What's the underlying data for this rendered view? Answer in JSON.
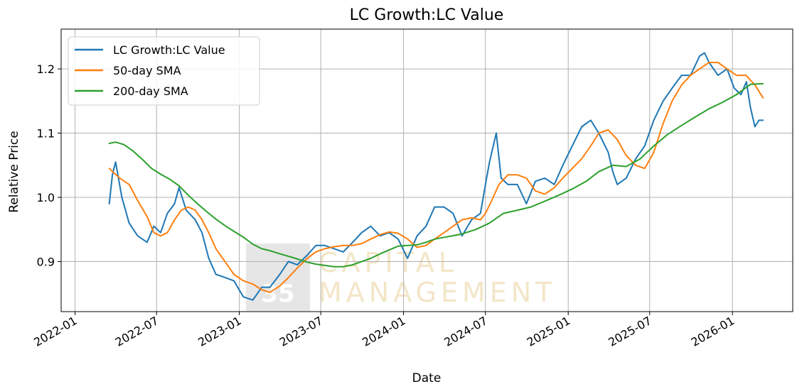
{
  "chart_data": {
    "type": "line",
    "title": "LC Growth:LC Value",
    "xlabel": "Date",
    "ylabel": "Relative Price",
    "x_ticks": [
      "2022-01",
      "2022-07",
      "2023-01",
      "2023-07",
      "2024-01",
      "2024-07",
      "2025-01",
      "2025-07",
      "2026-01"
    ],
    "y_ticks": [
      "0.9",
      "1.0",
      "1.1",
      "1.2"
    ],
    "xlim": [
      "2021-12-01",
      "2026-05-15"
    ],
    "ylim": [
      0.822,
      1.262
    ],
    "grid": true,
    "legend_position": "top-left",
    "series": [
      {
        "name": "LC Growth:LC Value",
        "color": "#1f77b4",
        "x": [
          "2022-03-18",
          "2022-03-25",
          "2022-04-01",
          "2022-04-15",
          "2022-05-01",
          "2022-05-20",
          "2022-06-10",
          "2022-06-25",
          "2022-07-10",
          "2022-07-25",
          "2022-08-10",
          "2022-08-20",
          "2022-09-05",
          "2022-09-25",
          "2022-10-10",
          "2022-10-25",
          "2022-11-10",
          "2022-12-01",
          "2022-12-20",
          "2023-01-10",
          "2023-01-31",
          "2023-02-20",
          "2023-03-10",
          "2023-04-01",
          "2023-04-20",
          "2023-05-10",
          "2023-06-01",
          "2023-06-20",
          "2023-07-10",
          "2023-07-31",
          "2023-08-20",
          "2023-09-10",
          "2023-09-30",
          "2023-10-20",
          "2023-11-10",
          "2023-11-30",
          "2023-12-20",
          "2024-01-10",
          "2024-01-31",
          "2024-02-20",
          "2024-03-10",
          "2024-03-31",
          "2024-04-20",
          "2024-05-10",
          "2024-05-31",
          "2024-06-20",
          "2024-07-01",
          "2024-07-10",
          "2024-07-25",
          "2024-08-05",
          "2024-08-20",
          "2024-09-10",
          "2024-09-30",
          "2024-10-20",
          "2024-11-10",
          "2024-12-01",
          "2024-12-20",
          "2025-01-10",
          "2025-01-31",
          "2025-02-20",
          "2025-03-10",
          "2025-03-31",
          "2025-04-10",
          "2025-04-20",
          "2025-05-10",
          "2025-05-31",
          "2025-06-20",
          "2025-07-10",
          "2025-07-31",
          "2025-08-20",
          "2025-09-10",
          "2025-09-30",
          "2025-10-20",
          "2025-10-31",
          "2025-11-10",
          "2025-11-30",
          "2025-12-20",
          "2026-01-05",
          "2026-01-20",
          "2026-02-01",
          "2026-02-10",
          "2026-02-20",
          "2026-03-01",
          "2026-03-10"
        ],
        "y": [
          0.99,
          1.035,
          1.055,
          1.0,
          0.96,
          0.94,
          0.93,
          0.955,
          0.945,
          0.975,
          0.99,
          1.015,
          0.98,
          0.965,
          0.945,
          0.905,
          0.88,
          0.875,
          0.87,
          0.845,
          0.84,
          0.86,
          0.86,
          0.88,
          0.9,
          0.895,
          0.91,
          0.925,
          0.925,
          0.92,
          0.915,
          0.93,
          0.945,
          0.955,
          0.94,
          0.945,
          0.935,
          0.905,
          0.94,
          0.955,
          0.985,
          0.985,
          0.975,
          0.94,
          0.965,
          0.975,
          1.02,
          1.055,
          1.1,
          1.03,
          1.02,
          1.02,
          0.99,
          1.025,
          1.03,
          1.02,
          1.05,
          1.08,
          1.11,
          1.12,
          1.1,
          1.07,
          1.04,
          1.02,
          1.03,
          1.06,
          1.08,
          1.12,
          1.15,
          1.17,
          1.19,
          1.19,
          1.22,
          1.225,
          1.21,
          1.19,
          1.2,
          1.17,
          1.16,
          1.18,
          1.14,
          1.11,
          1.12,
          1.12
        ]
      },
      {
        "name": "50-day SMA",
        "color": "#ff7f0e",
        "x": [
          "2022-03-18",
          "2022-04-10",
          "2022-05-01",
          "2022-05-20",
          "2022-06-10",
          "2022-06-25",
          "2022-07-10",
          "2022-07-25",
          "2022-08-10",
          "2022-08-25",
          "2022-09-10",
          "2022-09-25",
          "2022-10-10",
          "2022-10-25",
          "2022-11-10",
          "2022-11-30",
          "2022-12-20",
          "2023-01-10",
          "2023-01-31",
          "2023-02-20",
          "2023-03-10",
          "2023-04-01",
          "2023-04-20",
          "2023-05-10",
          "2023-06-01",
          "2023-06-20",
          "2023-07-10",
          "2023-07-31",
          "2023-08-20",
          "2023-09-10",
          "2023-09-30",
          "2023-10-20",
          "2023-11-10",
          "2023-11-30",
          "2023-12-20",
          "2024-01-10",
          "2024-01-31",
          "2024-02-20",
          "2024-03-10",
          "2024-03-31",
          "2024-04-20",
          "2024-05-10",
          "2024-05-31",
          "2024-06-20",
          "2024-07-01",
          "2024-07-15",
          "2024-07-31",
          "2024-08-20",
          "2024-09-10",
          "2024-09-30",
          "2024-10-20",
          "2024-11-10",
          "2024-12-01",
          "2024-12-20",
          "2025-01-10",
          "2025-01-31",
          "2025-02-20",
          "2025-03-10",
          "2025-03-31",
          "2025-04-20",
          "2025-05-10",
          "2025-05-31",
          "2025-06-20",
          "2025-07-10",
          "2025-07-31",
          "2025-08-20",
          "2025-09-10",
          "2025-09-30",
          "2025-10-20",
          "2025-11-10",
          "2025-11-30",
          "2025-12-20",
          "2026-01-10",
          "2026-01-31",
          "2026-02-20",
          "2026-03-10"
        ],
        "y": [
          1.045,
          1.03,
          1.02,
          0.995,
          0.97,
          0.945,
          0.94,
          0.945,
          0.965,
          0.98,
          0.985,
          0.98,
          0.965,
          0.945,
          0.92,
          0.9,
          0.88,
          0.87,
          0.865,
          0.856,
          0.852,
          0.862,
          0.875,
          0.89,
          0.905,
          0.915,
          0.92,
          0.923,
          0.925,
          0.925,
          0.928,
          0.935,
          0.942,
          0.946,
          0.944,
          0.935,
          0.922,
          0.925,
          0.935,
          0.945,
          0.955,
          0.965,
          0.968,
          0.965,
          0.975,
          0.995,
          1.02,
          1.035,
          1.035,
          1.03,
          1.01,
          1.005,
          1.015,
          1.03,
          1.045,
          1.06,
          1.08,
          1.1,
          1.105,
          1.09,
          1.065,
          1.05,
          1.045,
          1.07,
          1.115,
          1.15,
          1.175,
          1.19,
          1.2,
          1.21,
          1.21,
          1.2,
          1.19,
          1.19,
          1.175,
          1.155
        ]
      },
      {
        "name": "200-day SMA",
        "color": "#2ca02c",
        "x": [
          "2022-03-18",
          "2022-04-01",
          "2022-04-20",
          "2022-05-10",
          "2022-06-01",
          "2022-06-20",
          "2022-07-10",
          "2022-07-31",
          "2022-08-20",
          "2022-09-10",
          "2022-09-30",
          "2022-10-20",
          "2022-11-10",
          "2022-11-30",
          "2022-12-20",
          "2023-01-10",
          "2023-01-31",
          "2023-02-20",
          "2023-03-10",
          "2023-04-01",
          "2023-05-01",
          "2023-06-01",
          "2023-06-20",
          "2023-07-10",
          "2023-07-31",
          "2023-08-20",
          "2023-09-10",
          "2023-09-30",
          "2023-10-20",
          "2023-11-10",
          "2023-11-30",
          "2023-12-20",
          "2024-01-10",
          "2024-01-31",
          "2024-02-20",
          "2024-03-10",
          "2024-04-10",
          "2024-05-10",
          "2024-06-10",
          "2024-07-10",
          "2024-08-10",
          "2024-09-10",
          "2024-10-10",
          "2024-11-10",
          "2024-12-10",
          "2025-01-10",
          "2025-02-10",
          "2025-03-10",
          "2025-04-10",
          "2025-05-10",
          "2025-06-10",
          "2025-07-10",
          "2025-08-10",
          "2025-09-10",
          "2025-10-10",
          "2025-11-10",
          "2025-12-10",
          "2026-01-10",
          "2026-02-10",
          "2026-03-10"
        ],
        "y": [
          1.084,
          1.086,
          1.082,
          1.072,
          1.058,
          1.045,
          1.036,
          1.028,
          1.018,
          1.003,
          0.99,
          0.978,
          0.966,
          0.956,
          0.947,
          0.938,
          0.927,
          0.92,
          0.917,
          0.912,
          0.906,
          0.899,
          0.896,
          0.894,
          0.892,
          0.892,
          0.895,
          0.9,
          0.905,
          0.912,
          0.918,
          0.924,
          0.925,
          0.926,
          0.93,
          0.935,
          0.939,
          0.943,
          0.95,
          0.96,
          0.975,
          0.98,
          0.985,
          0.994,
          1.003,
          1.013,
          1.025,
          1.04,
          1.05,
          1.048,
          1.06,
          1.08,
          1.098,
          1.112,
          1.125,
          1.138,
          1.148,
          1.16,
          1.176,
          1.177
        ]
      }
    ]
  },
  "watermark": {
    "number": "35",
    "line1": "CAPITAL",
    "line2": "MANAGEMENT"
  }
}
